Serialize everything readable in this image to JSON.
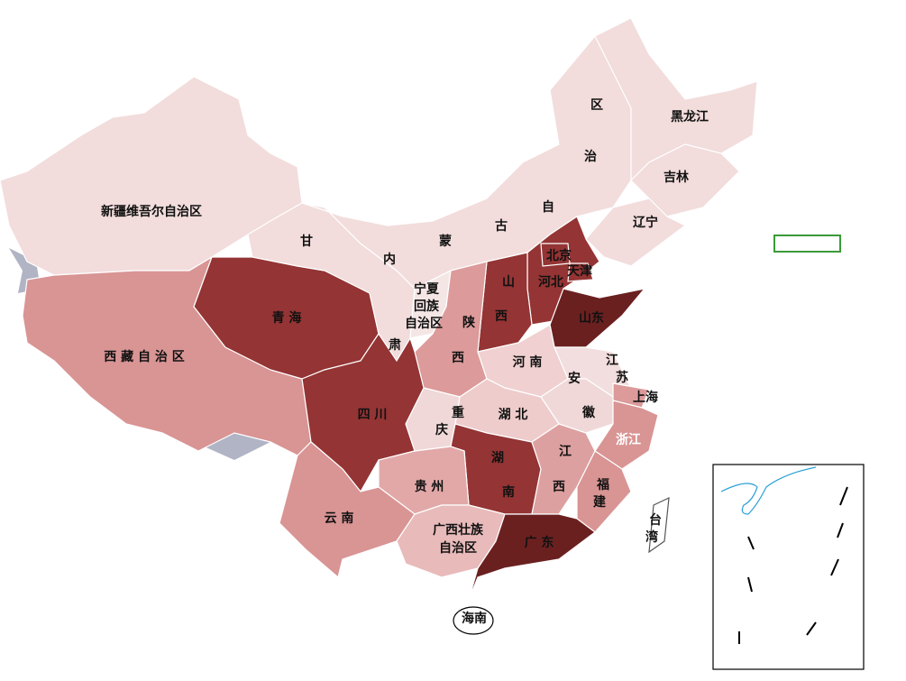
{
  "regions": [
    {
      "label": [
        "新疆维吾尔自治区"
      ],
      "color": "#f2dcdc"
    },
    {
      "label": [
        "西 藏 自 治 区"
      ],
      "color": "#d99494"
    },
    {
      "label": [
        "青 海"
      ],
      "color": "#943434"
    },
    {
      "label": [
        "甘",
        "肃"
      ],
      "color": "#f2dcdc"
    },
    {
      "label": [
        "内",
        "蒙",
        "古",
        "自",
        "治",
        "区"
      ],
      "color": "#f2dcdc"
    },
    {
      "label": [
        "黑龙江"
      ],
      "color": "#f2dcdc"
    },
    {
      "label": [
        "吉林"
      ],
      "color": "#f2dcdc"
    },
    {
      "label": [
        "辽宁"
      ],
      "color": "#f2dcdc"
    },
    {
      "label": [
        "河北"
      ],
      "color": "#943434"
    },
    {
      "label": [
        "北京"
      ],
      "color": "#943434"
    },
    {
      "label": [
        "天津"
      ],
      "color": "#943434"
    },
    {
      "label": [
        "山",
        "西"
      ],
      "color": "#943434"
    },
    {
      "label": [
        "山东"
      ],
      "color": "#6b2020"
    },
    {
      "label": [
        "宁夏",
        "回族",
        "自治区"
      ],
      "color": "#f5e6e6"
    },
    {
      "label": [
        "陕",
        "西"
      ],
      "color": "#dc9a9a"
    },
    {
      "label": [
        "河 南"
      ],
      "color": "#f0d0d0"
    },
    {
      "label": [
        "江",
        "苏"
      ],
      "color": "#f2dede"
    },
    {
      "label": [
        "安",
        "徽"
      ],
      "color": "#f0d8d8"
    },
    {
      "label": [
        "上海"
      ],
      "color": "#dc9a9a"
    },
    {
      "label": [
        "浙江"
      ],
      "color": "#d99494"
    },
    {
      "label": [
        "湖 北"
      ],
      "color": "#eecccc"
    },
    {
      "label": [
        "重",
        "庆"
      ],
      "color": "#f0d8d8"
    },
    {
      "label": [
        "四 川"
      ],
      "color": "#943434"
    },
    {
      "label": [
        "湖",
        "南"
      ],
      "color": "#943434"
    },
    {
      "label": [
        "江",
        "西"
      ],
      "color": "#dda0a0"
    },
    {
      "label": [
        "福",
        "建"
      ],
      "color": "#d99494"
    },
    {
      "label": [
        "贵 州"
      ],
      "color": "#e2a8a8"
    },
    {
      "label": [
        "云 南"
      ],
      "color": "#d99494"
    },
    {
      "label": [
        "广西壮族",
        "自治区"
      ],
      "color": "#e8baba"
    },
    {
      "label": [
        "广 东"
      ],
      "color": "#6b2020"
    },
    {
      "label": [
        "海南"
      ],
      "color": "#ffffff"
    },
    {
      "label": [
        "台",
        "湾"
      ],
      "color": "#ffffff"
    }
  ]
}
